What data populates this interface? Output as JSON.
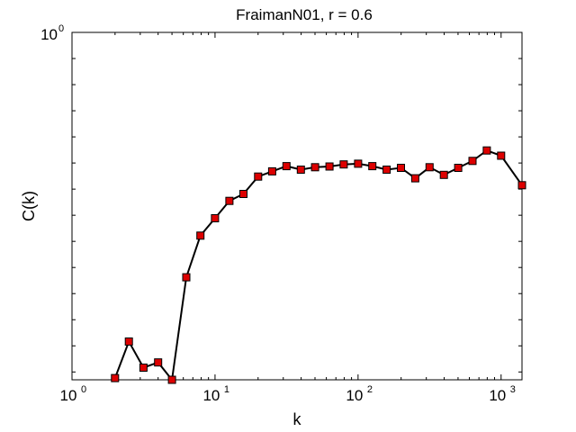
{
  "chart_data": {
    "type": "line",
    "title": "FraimanN01, r = 0.6",
    "xlabel": "k",
    "ylabel": "C(k)",
    "xscale": "log",
    "xlim": [
      1,
      1400
    ],
    "ylim": [
      0.0,
      1.0
    ],
    "grid": false,
    "x_ticks": [
      {
        "base": "10",
        "exp": "0",
        "value": 1
      },
      {
        "base": "10",
        "exp": "1",
        "value": 10
      },
      {
        "base": "10",
        "exp": "2",
        "value": 100
      },
      {
        "base": "10",
        "exp": "3",
        "value": 1000
      }
    ],
    "y_ticks": [
      {
        "base": "10",
        "exp": "0",
        "value": 1.0
      }
    ],
    "marker_color": "#dd0000",
    "line_color": "#000000",
    "series": [
      {
        "x": [
          2.0,
          2.5,
          3.16,
          4.0,
          5.0,
          6.3,
          7.9,
          10.0,
          12.6,
          15.8,
          20.0,
          25.1,
          31.6,
          39.8,
          50.1,
          63.1,
          79.4,
          100.0,
          125.9,
          158.5,
          199.5,
          251.2,
          316.2,
          398.1,
          501.2,
          631.0,
          794.3,
          1000.0,
          1400.0
        ],
        "y": [
          0.005,
          0.11,
          0.035,
          0.05,
          0.0,
          0.295,
          0.415,
          0.465,
          0.515,
          0.535,
          0.585,
          0.6,
          0.615,
          0.605,
          0.612,
          0.614,
          0.62,
          0.622,
          0.615,
          0.605,
          0.61,
          0.58,
          0.612,
          0.59,
          0.61,
          0.63,
          0.66,
          0.645,
          0.56
        ]
      }
    ]
  }
}
